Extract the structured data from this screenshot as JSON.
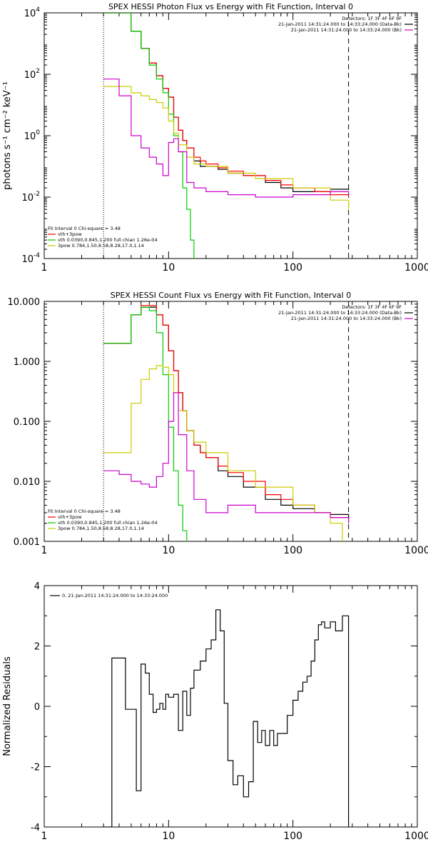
{
  "chart_data": [
    {
      "type": "line",
      "title": "SPEX HESSI Photon Flux vs Energy with Fit Function, Interval 0",
      "xlabel": "",
      "ylabel": "photons s⁻¹ cm⁻² keV⁻¹",
      "xscale": "log",
      "yscale": "log",
      "xlim": [
        1,
        1000
      ],
      "ylim": [
        0.0001,
        10000
      ],
      "xticks": [
        "1",
        "10",
        "100",
        "1000"
      ],
      "yticks": [
        {
          "base": "10",
          "exp": "4"
        },
        {
          "base": "10",
          "exp": "2"
        },
        {
          "base": "10",
          "exp": "0"
        },
        {
          "base": "10",
          "exp": "-2"
        },
        {
          "base": "10",
          "exp": "-4"
        }
      ],
      "legend_right": {
        "position": "top-right",
        "lines": [
          "Detectors: 1F 3F 4F 6F 9F",
          "21-Jan-2011 14:31:24.000 to 14:33:24.000 (Data-Bk)",
          "21-Jan-2011 14:31:24.000 to 14:33:24.000 (Bk)"
        ]
      },
      "legend_left": {
        "position": "bottom-left",
        "header": "Fit Interval 0   Chi-square = 3.48",
        "entries": [
          {
            "label": "vth+3pow",
            "color": "#ff0000"
          },
          {
            "label": "vth 0.0390,0.845,1.200  full chian 1.26e-04",
            "color": "#00cc00"
          },
          {
            "label": "3pow 0.784,1.50,8.58,8.28,17.0,1.14",
            "color": "#cccc00"
          }
        ]
      },
      "vlines": [
        {
          "x": 3,
          "style": "dotted"
        },
        {
          "x": 280,
          "style": "dashed"
        }
      ],
      "series": [
        {
          "color": "#000000",
          "x": [
            3,
            4,
            5,
            6,
            7,
            8,
            9,
            10,
            11,
            12,
            13,
            14,
            16,
            18,
            20,
            25,
            30,
            40,
            60,
            80,
            100,
            150,
            200,
            280
          ],
          "y": [
            10000,
            10000,
            2500,
            700,
            230,
            90,
            35,
            18,
            4,
            1.5,
            0.7,
            0.4,
            0.15,
            0.1,
            0.1,
            0.08,
            0.06,
            0.05,
            0.03,
            0.02,
            0.015,
            0.015,
            0.018,
            0.017
          ]
        },
        {
          "color": "#ff0000",
          "x": [
            3,
            4,
            5,
            6,
            7,
            8,
            9,
            10,
            11,
            12,
            13,
            14,
            16,
            18,
            20,
            25,
            30,
            40,
            60,
            80,
            100,
            150,
            200,
            280
          ],
          "y": [
            10000,
            10000,
            2500,
            700,
            230,
            90,
            35,
            18,
            4,
            1.5,
            0.7,
            0.4,
            0.2,
            0.15,
            0.12,
            0.09,
            0.07,
            0.05,
            0.035,
            0.025,
            0.02,
            0.015,
            0.012,
            0.01
          ]
        },
        {
          "color": "#00cc00",
          "x": [
            3,
            4,
            5,
            6,
            7,
            8,
            9,
            10,
            11,
            12,
            13,
            14,
            15,
            16
          ],
          "y": [
            10000,
            10000,
            2500,
            700,
            200,
            70,
            25,
            5,
            1,
            0.3,
            0.02,
            0.004,
            0.0004,
            0.0001
          ]
        },
        {
          "color": "#cccc00",
          "x": [
            3,
            4,
            5,
            6,
            7,
            8,
            9,
            10,
            11,
            12,
            14,
            16,
            20,
            30,
            50,
            100,
            200,
            280
          ],
          "y": [
            40,
            40,
            25,
            20,
            15,
            12,
            8,
            3,
            1.2,
            0.5,
            0.2,
            0.12,
            0.1,
            0.06,
            0.04,
            0.02,
            0.008,
            0.004
          ]
        },
        {
          "color": "#cc00cc",
          "x": [
            3,
            4,
            5,
            6,
            7,
            8,
            9,
            10,
            11,
            12,
            14,
            16,
            20,
            30,
            50,
            100,
            200,
            280
          ],
          "y": [
            70,
            20,
            1.0,
            0.4,
            0.2,
            0.12,
            0.05,
            0.6,
            0.8,
            0.3,
            0.03,
            0.02,
            0.015,
            0.012,
            0.01,
            0.012,
            0.015,
            0.012
          ]
        }
      ]
    },
    {
      "type": "line",
      "title": "SPEX HESSI Count Flux vs Energy with Fit Function, Interval 0",
      "xlabel": "",
      "ylabel": "",
      "xscale": "log",
      "yscale": "log",
      "xlim": [
        1,
        1000
      ],
      "ylim": [
        0.001,
        10
      ],
      "xticks": [
        "1",
        "10",
        "100",
        "1000"
      ],
      "yticks": [
        "10.000",
        "1.000",
        "0.100",
        "0.010",
        "0.001"
      ],
      "legend_right": {
        "position": "top-right",
        "lines": [
          "Detectors: 1F 3F 4F 6F 9F",
          "21-Jan-2011 14:31:24.000 to 14:33:24.000 (Data-Bk)",
          "21-Jan-2011 14:31:24.000 to 14:33:24.000 (Bk)"
        ]
      },
      "legend_left": {
        "position": "bottom-left",
        "header": "Fit Interval 0   Chi-square = 3.48",
        "entries": [
          {
            "label": "vth+3pow",
            "color": "#ff0000"
          },
          {
            "label": "vth 0.0390,0.845,1.200  full chian 1.26e-04",
            "color": "#00cc00"
          },
          {
            "label": "3pow 0.784,1.50,8.58,8.28,17.0,1.14",
            "color": "#cccc00"
          }
        ]
      },
      "vlines": [
        {
          "x": 3,
          "style": "dotted"
        },
        {
          "x": 280,
          "style": "dashed"
        }
      ],
      "series": [
        {
          "color": "#000000",
          "x": [
            3,
            4,
            5,
            6,
            7,
            8,
            9,
            10,
            11,
            12,
            13,
            14,
            16,
            18,
            20,
            25,
            30,
            40,
            60,
            80,
            100,
            150,
            200,
            280
          ],
          "y": [
            2,
            2,
            6,
            8,
            8,
            6,
            4,
            1.5,
            0.7,
            0.3,
            0.15,
            0.07,
            0.04,
            0.03,
            0.025,
            0.015,
            0.012,
            0.008,
            0.005,
            0.004,
            0.0035,
            0.003,
            0.0028,
            0.0025
          ]
        },
        {
          "color": "#ff0000",
          "x": [
            3,
            4,
            5,
            6,
            7,
            8,
            9,
            10,
            11,
            12,
            13,
            14,
            16,
            18,
            20,
            25,
            30,
            40,
            60,
            80,
            100,
            150,
            200,
            280
          ],
          "y": [
            2,
            2,
            6,
            8.5,
            8.5,
            6,
            4,
            1.5,
            0.7,
            0.3,
            0.15,
            0.07,
            0.04,
            0.03,
            0.025,
            0.018,
            0.014,
            0.01,
            0.006,
            0.005,
            0.004,
            0.003,
            0.0025,
            0.002
          ]
        },
        {
          "color": "#00cc00",
          "x": [
            3,
            4,
            5,
            6,
            7,
            8,
            9,
            10,
            11,
            12,
            13,
            14
          ],
          "y": [
            2,
            2,
            6,
            8,
            7,
            3,
            0.6,
            0.08,
            0.015,
            0.004,
            0.0015,
            0.001
          ]
        },
        {
          "color": "#cccc00",
          "x": [
            3,
            4,
            5,
            6,
            7,
            8,
            9,
            10,
            11,
            12,
            14,
            16,
            20,
            30,
            50,
            100,
            150,
            200,
            250
          ],
          "y": [
            0.03,
            0.03,
            0.2,
            0.5,
            0.75,
            0.85,
            0.8,
            0.6,
            0.3,
            0.15,
            0.07,
            0.045,
            0.03,
            0.015,
            0.008,
            0.004,
            0.003,
            0.002,
            0.001
          ]
        },
        {
          "color": "#cc00cc",
          "x": [
            3,
            4,
            5,
            6,
            7,
            8,
            9,
            10,
            11,
            12,
            14,
            16,
            20,
            30,
            50,
            100,
            200,
            280
          ],
          "y": [
            0.015,
            0.013,
            0.01,
            0.009,
            0.008,
            0.012,
            0.02,
            0.1,
            0.3,
            0.06,
            0.015,
            0.005,
            0.003,
            0.004,
            0.003,
            0.003,
            0.0025,
            0.002
          ]
        }
      ]
    },
    {
      "type": "line",
      "title": "",
      "xlabel": "",
      "ylabel": "Normalized Residuals",
      "xscale": "log",
      "yscale": "linear",
      "xlim": [
        1,
        1000
      ],
      "ylim": [
        -4,
        4
      ],
      "xticks": [
        "1",
        "10",
        "100",
        "1000"
      ],
      "yticks": [
        "4",
        "2",
        "0",
        "-2",
        "-4"
      ],
      "legend": {
        "position": "top-left",
        "label": "0, 21-Jan-2011 14:31:24.000 to 14:33:24.000"
      },
      "series": [
        {
          "color": "#000000",
          "x": [
            3,
            3.5,
            4,
            4.5,
            5,
            5.5,
            6,
            6.5,
            7,
            7.5,
            8,
            8.5,
            9,
            9.5,
            10,
            11,
            12,
            13,
            14,
            15,
            16,
            18,
            20,
            22,
            24,
            26,
            28,
            30,
            33,
            36,
            40,
            44,
            48,
            52,
            56,
            60,
            65,
            70,
            75,
            80,
            90,
            100,
            110,
            120,
            130,
            140,
            150,
            160,
            170,
            180,
            200,
            220,
            250,
            280
          ],
          "y": [
            -4,
            1.6,
            1.6,
            -0.1,
            -0.1,
            -2.8,
            1.4,
            1.1,
            0.4,
            -0.2,
            -0.1,
            0.1,
            -0.1,
            0.4,
            0.3,
            0.4,
            -0.8,
            0.5,
            -0.3,
            0.6,
            1.2,
            1.5,
            1.9,
            2.2,
            3.2,
            2.5,
            0.1,
            -1.8,
            -2.6,
            -2.3,
            -3.0,
            -2.5,
            -0.5,
            -1.2,
            -0.8,
            -1.3,
            -0.8,
            -1.3,
            -0.9,
            -0.9,
            -0.3,
            0.2,
            0.5,
            0.8,
            1.0,
            1.5,
            2.2,
            2.7,
            2.8,
            2.6,
            2.8,
            2.5,
            3.0,
            -4
          ]
        }
      ]
    }
  ]
}
